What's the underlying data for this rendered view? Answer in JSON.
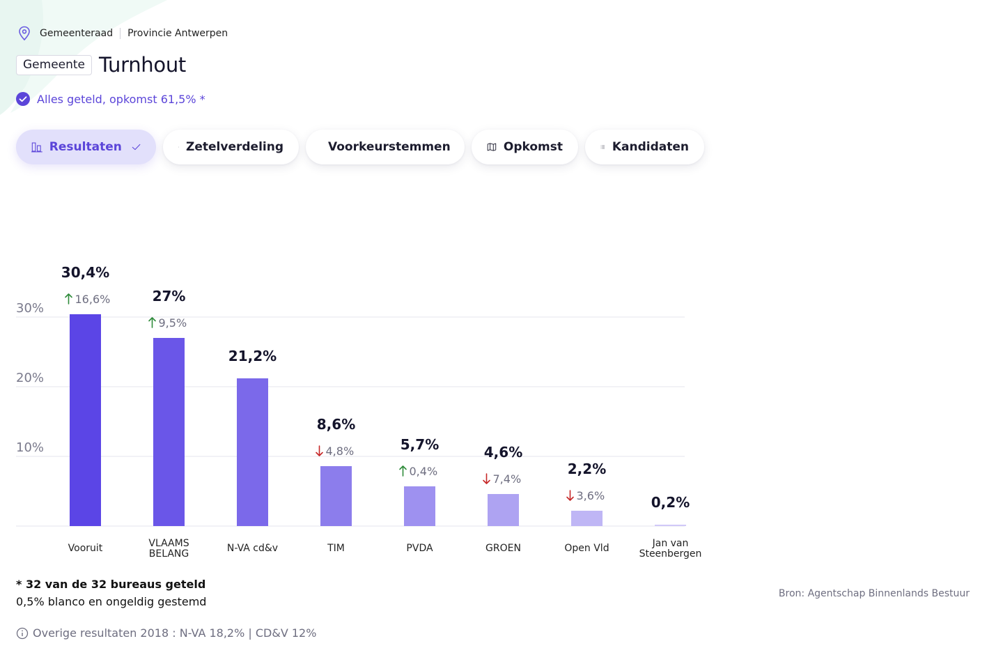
{
  "breadcrumb": {
    "level": "Gemeenteraad",
    "province": "Provincie Antwerpen"
  },
  "header": {
    "badge": "Gemeente",
    "title": "Turnhout"
  },
  "status": {
    "text": "Alles geteld, opkomst 61,5% *"
  },
  "tabs": [
    {
      "label": "Resultaten",
      "active": true,
      "icon": "bar-chart-icon"
    },
    {
      "label": "Zetelverdeling",
      "active": false,
      "icon": "seats-icon"
    },
    {
      "label": "Voorkeurstemmen",
      "active": false,
      "icon": "people-icon"
    },
    {
      "label": "Opkomst",
      "active": false,
      "icon": "map-icon"
    },
    {
      "label": "Kandidaten",
      "active": false,
      "icon": "list-icon"
    }
  ],
  "chart_data": {
    "type": "bar",
    "categories": [
      "Vooruit",
      "VLAAMS BELANG",
      "N-VA cd&v",
      "TIM",
      "PVDA",
      "GROEN",
      "Open Vld",
      "Jan van Steenbergen"
    ],
    "category_lines": [
      [
        "Vooruit"
      ],
      [
        "VLAAMS",
        "BELANG"
      ],
      [
        "N-VA cd&v"
      ],
      [
        "TIM"
      ],
      [
        "PVDA"
      ],
      [
        "GROEN"
      ],
      [
        "Open Vld"
      ],
      [
        "Jan van",
        "Steenbergen"
      ]
    ],
    "values": [
      30.4,
      27,
      21.2,
      8.6,
      5.7,
      4.6,
      2.2,
      0.2
    ],
    "value_labels": [
      "30,4%",
      "27%",
      "21,2%",
      "8,6%",
      "5,7%",
      "4,6%",
      "2,2%",
      "0,2%"
    ],
    "changes": [
      {
        "direction": "up",
        "label": "16,6%"
      },
      {
        "direction": "up",
        "label": "9,5%"
      },
      null,
      {
        "direction": "down",
        "label": "4,8%"
      },
      {
        "direction": "up",
        "label": "0,4%"
      },
      {
        "direction": "down",
        "label": "7,4%"
      },
      {
        "direction": "down",
        "label": "3,6%"
      },
      null
    ],
    "yticks": [
      10,
      20,
      30
    ],
    "ytick_labels": [
      "10%",
      "20%",
      "30%"
    ],
    "ylim": [
      0,
      30
    ],
    "grid": true,
    "colors": [
      "#5b45e6",
      "#6a56e8",
      "#7b69ea",
      "#8c7dec",
      "#9e91f0",
      "#aea3f2",
      "#bfb6f5",
      "#d0c9f8"
    ],
    "up_color": "#2e8b3a",
    "down_color": "#c62828"
  },
  "footer": {
    "counted": "* 32 van de 32 bureaus geteld",
    "blanco": "0,5% blanco en ongeldig gestemd",
    "overige": "Overige resultaten 2018 : N-VA 18,2% | CD&V 12%",
    "source": "Bron: Agentschap Binnenlands Bestuur"
  }
}
